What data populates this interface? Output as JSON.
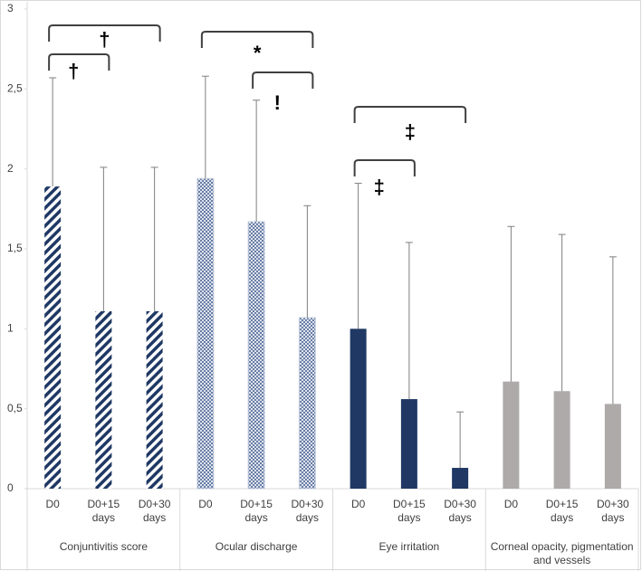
{
  "chart_data": {
    "type": "grouped-bar-error",
    "ylim": [
      0,
      3
    ],
    "yticks": [
      0,
      {
        "value": 0.5,
        "label": "0,5"
      },
      1,
      {
        "value": 1.5,
        "label": "1,5"
      },
      2,
      {
        "value": 2.5,
        "label": "2,5"
      },
      3
    ],
    "categories": [
      "D0",
      "D0+15 days",
      "D0+30 days"
    ],
    "error_color": "#7f7f7f",
    "groups": [
      {
        "name": "Conjuntivitis score",
        "color": "#1f3864",
        "pattern": "diagonal-stripes",
        "values": [
          1.89,
          1.11,
          1.11
        ],
        "errors": [
          0.68,
          0.9,
          0.9
        ]
      },
      {
        "name": "Ocular discharge",
        "color": "#1f3864",
        "pattern": "crosshatch",
        "values": [
          1.94,
          1.67,
          1.07
        ],
        "errors": [
          0.64,
          0.76,
          0.7
        ]
      },
      {
        "name": "Eye irritation",
        "color": "#1f3864",
        "pattern": "solid",
        "values": [
          1.0,
          0.56,
          0.13
        ],
        "errors": [
          0.91,
          0.98,
          0.35
        ]
      },
      {
        "name": "Corneal opacity, pigmentation and vessels",
        "color": "#aeaaaa",
        "pattern": "solid",
        "values": [
          0.67,
          0.61,
          0.53
        ],
        "errors": [
          0.97,
          0.98,
          0.92
        ]
      }
    ],
    "annotations": [
      {
        "text": "†",
        "group": 0,
        "from": 0,
        "to": 2
      },
      {
        "text": "†",
        "group": 0,
        "from": 0,
        "to": 1
      },
      {
        "text": "*",
        "group": 1,
        "from": 0,
        "to": 2
      },
      {
        "text": "!",
        "group": 1,
        "from": 1,
        "to": 2
      },
      {
        "text": "‡",
        "group": 2,
        "from": 0,
        "to": 2
      },
      {
        "text": "‡",
        "group": 2,
        "from": 0,
        "to": 1
      }
    ]
  }
}
